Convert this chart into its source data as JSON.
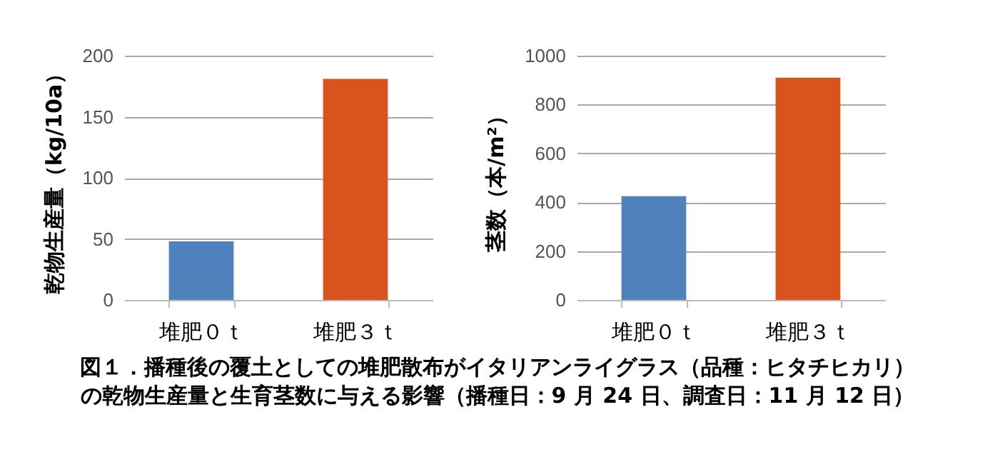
{
  "chart_data": [
    {
      "type": "bar",
      "ylabel": "乾物生産量（kg/10a）",
      "categories": [
        "堆肥０ｔ",
        "堆肥３ｔ"
      ],
      "values": [
        48,
        181
      ],
      "colors": [
        "#4f81bd",
        "#d9531e"
      ],
      "ylim": [
        0,
        200
      ],
      "yticks": [
        0,
        50,
        100,
        150,
        200
      ],
      "grid": "y",
      "annotations": [
        "図１．播種後の覆土としての堆肥散布がイタリアンライグラス（品種：ヒタチヒカリ）",
        "の乾物生産量と生育茎数に与える影響（播種日：9 月 24 日、調査日：11 月 12 日）"
      ]
    },
    {
      "type": "bar",
      "ylabel": "茎数（本/m²）",
      "categories": [
        "堆肥０ｔ",
        "堆肥３ｔ"
      ],
      "values": [
        425,
        910
      ],
      "colors": [
        "#4f81bd",
        "#d9531e"
      ],
      "ylim": [
        0,
        1000
      ],
      "yticks": [
        0,
        200,
        400,
        600,
        800,
        1000
      ],
      "grid": "y"
    }
  ]
}
